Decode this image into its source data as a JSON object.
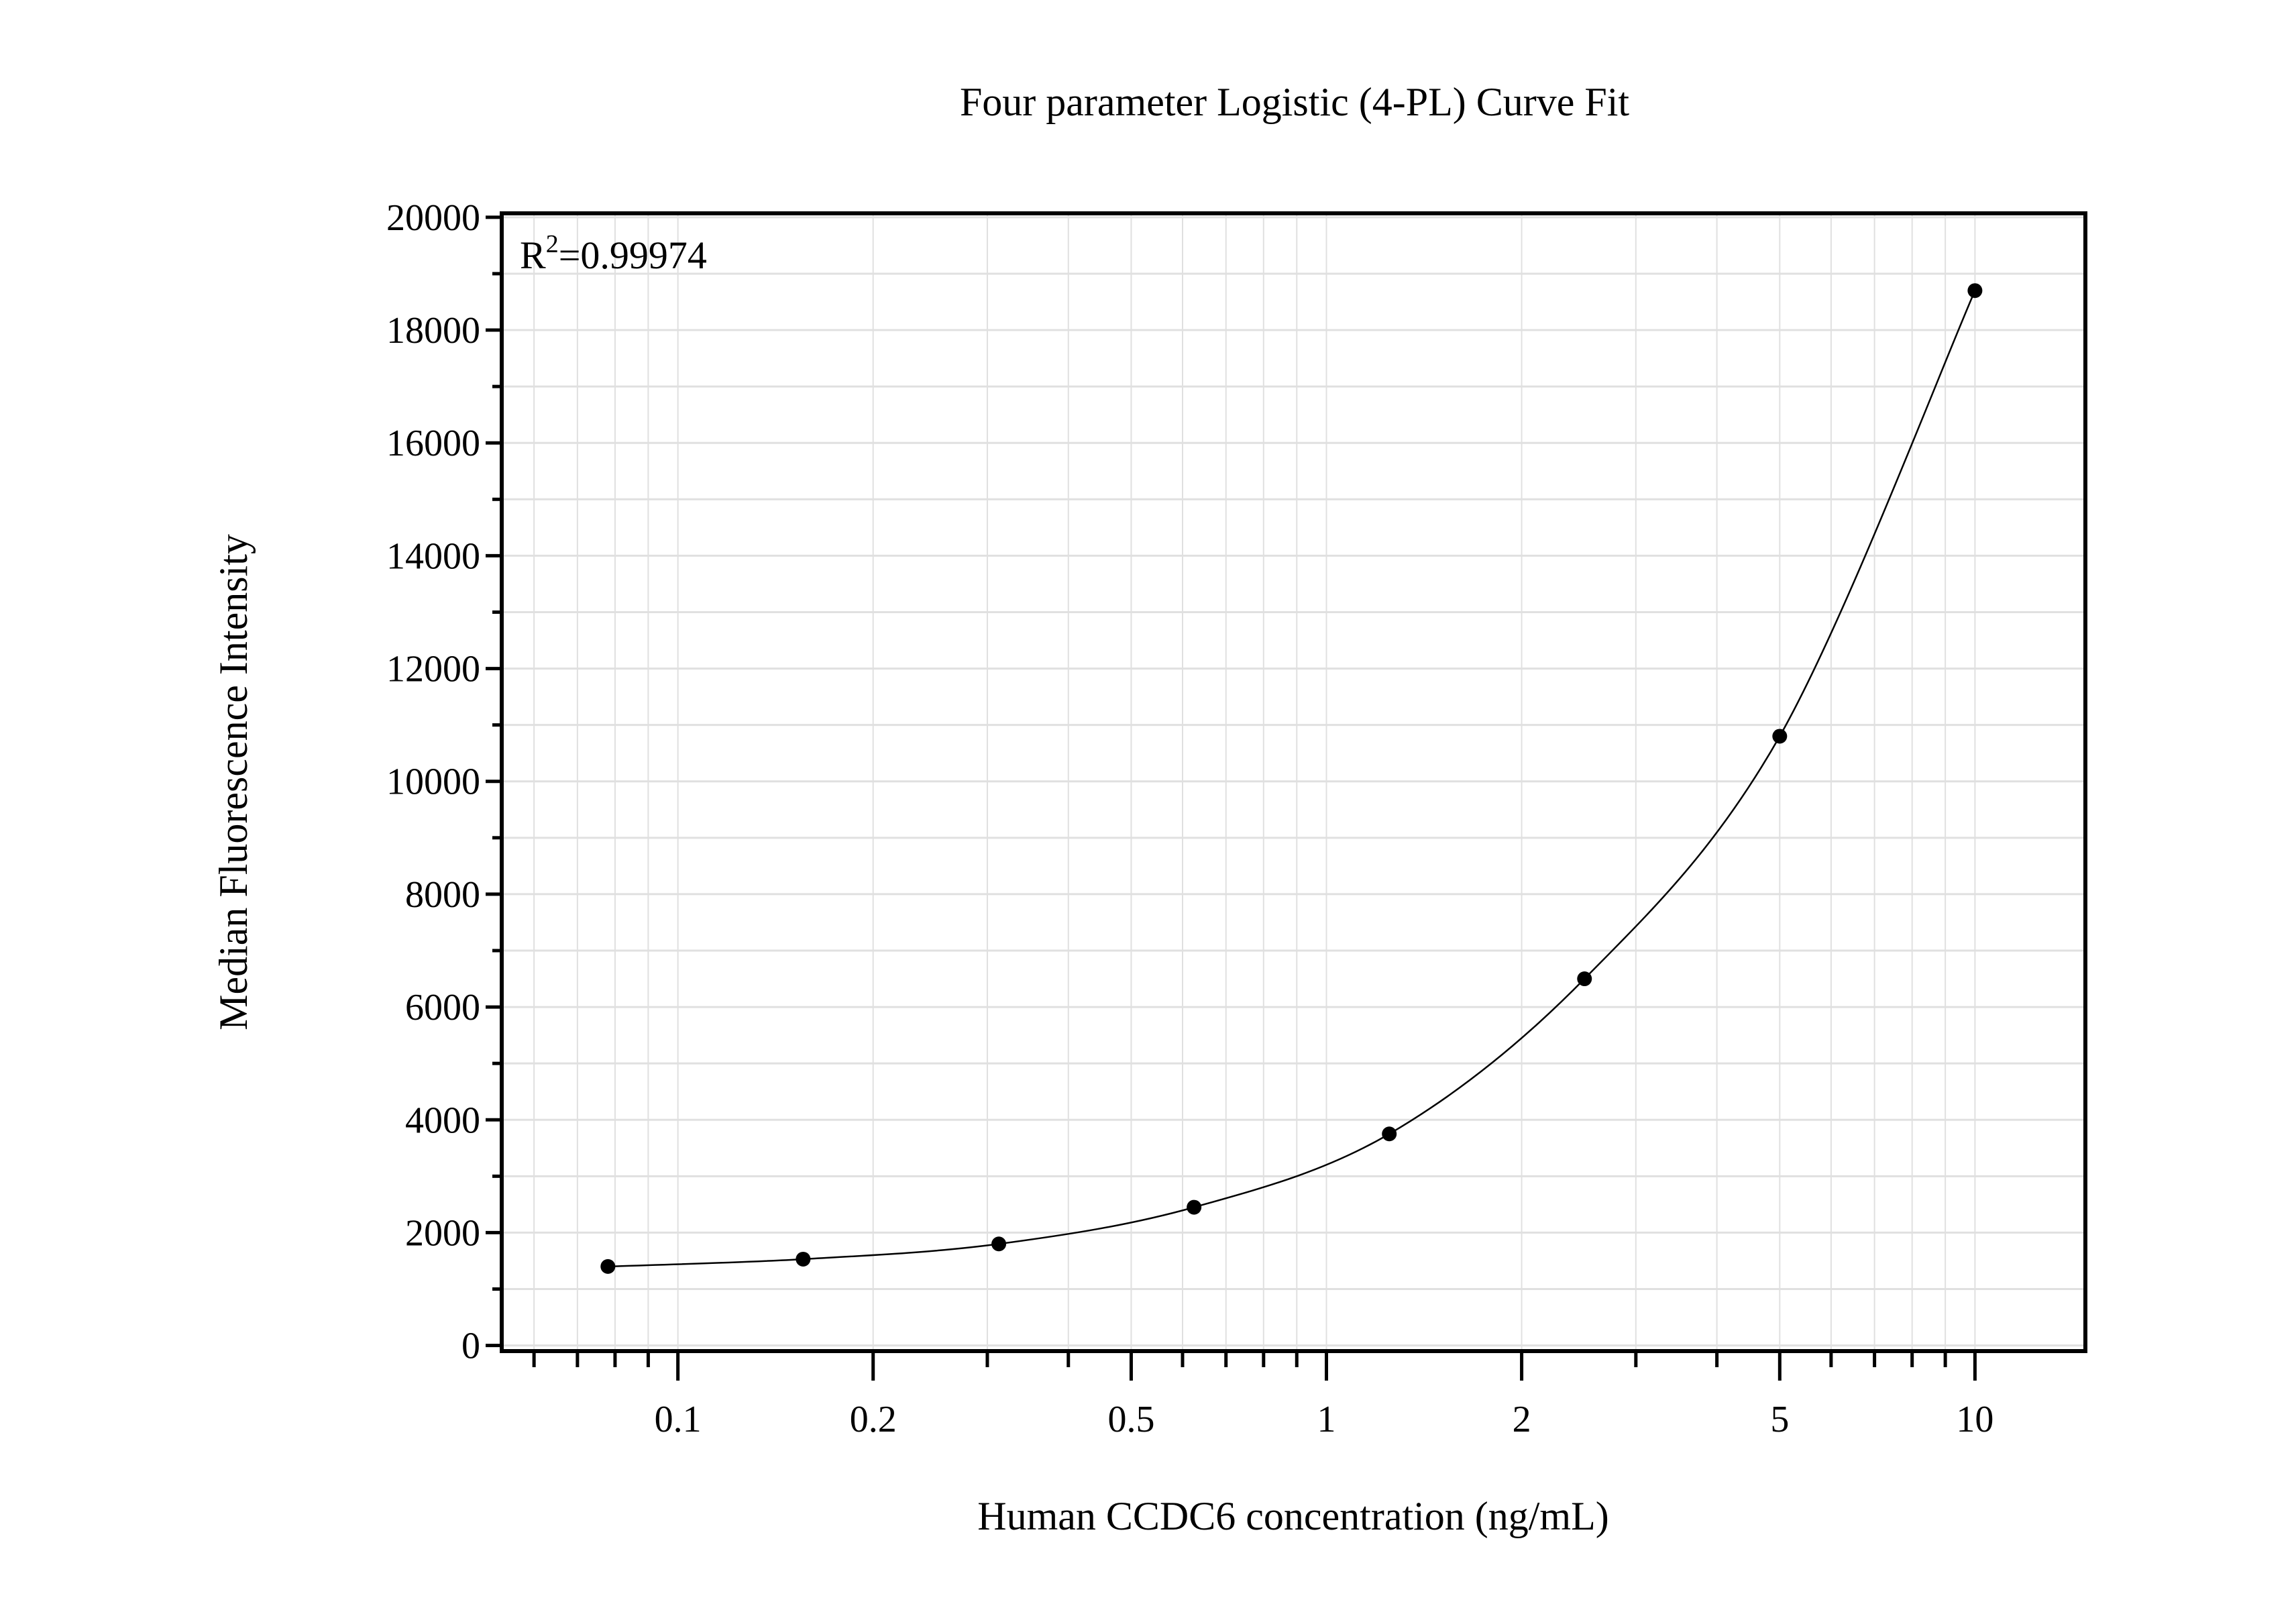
{
  "chart_data": {
    "type": "scatter",
    "title": "Four parameter Logistic (4-PL) Curve Fit",
    "xlabel": "Human CCDC6 concentration (ng/mL)",
    "ylabel": "Median Fluorescence Intensity",
    "annotation": {
      "base": "R",
      "sup": "2",
      "value": "=0.99974"
    },
    "x_scale": "log",
    "xlim": [
      0.0535,
      14.8
    ],
    "ylim": [
      -100,
      20070
    ],
    "x_ticks": [
      0.1,
      0.2,
      0.5,
      1,
      2,
      5,
      10
    ],
    "x_tick_labels": [
      "0.1",
      "0.2",
      "0.5",
      "1",
      "2",
      "5",
      "10"
    ],
    "x_minor_ticks": [
      0.06,
      0.07,
      0.08,
      0.09,
      0.3,
      0.4,
      0.6,
      0.7,
      0.8,
      0.9,
      3,
      4,
      6,
      7,
      8,
      9
    ],
    "y_ticks": [
      0,
      2000,
      4000,
      6000,
      8000,
      10000,
      12000,
      14000,
      16000,
      18000,
      20000
    ],
    "y_tick_labels": [
      "0",
      "2000",
      "4000",
      "6000",
      "8000",
      "10000",
      "12000",
      "14000",
      "16000",
      "18000",
      "20000"
    ],
    "y_minor_step": 1000,
    "grid": true,
    "series": [
      {
        "x": [
          0.078,
          0.156,
          0.3125,
          0.625,
          1.25,
          2.5,
          5,
          10
        ],
        "y": [
          1400,
          1530,
          1800,
          2450,
          3750,
          6500,
          10800,
          18700
        ],
        "marker": "circle",
        "fit_line": true
      }
    ],
    "colors": {
      "points": "#000000",
      "line": "#000000",
      "grid": "#e0e0e0",
      "axis": "#000000"
    }
  }
}
